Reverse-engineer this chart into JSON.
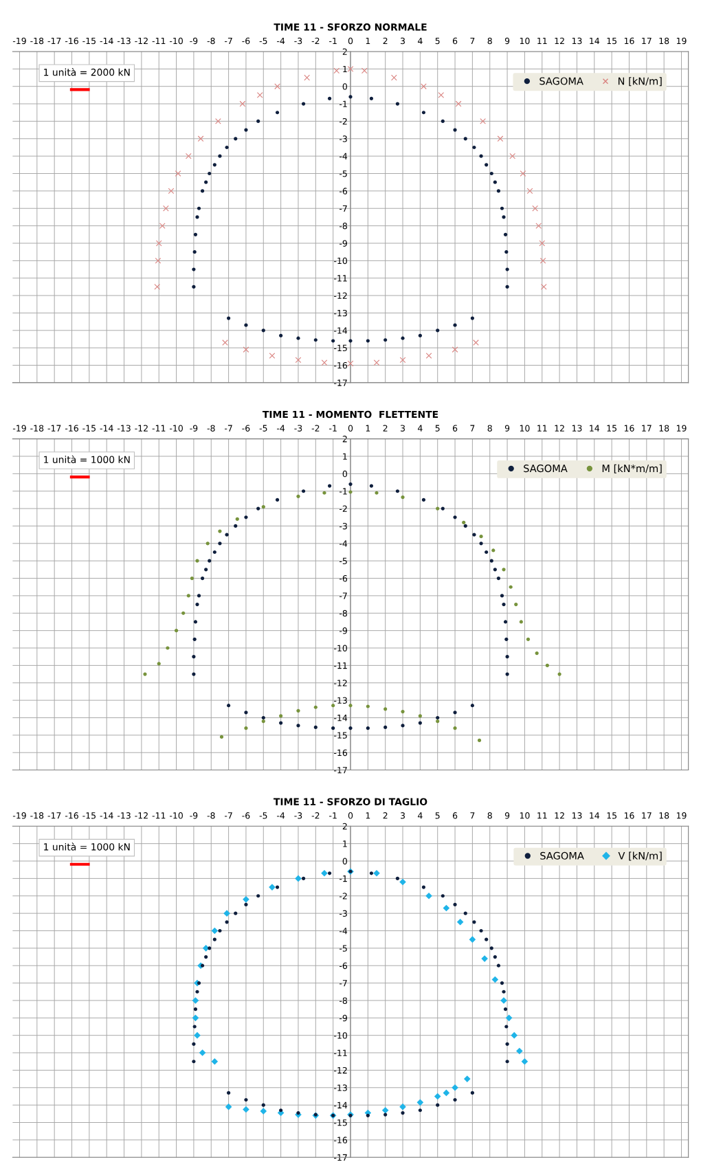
{
  "chart_data": [
    {
      "type": "scatter",
      "title": "TIME 11 - SFORZO NORMALE",
      "annotations": [
        "1 unità = 2000 kN"
      ],
      "legend": "top right",
      "grid": true,
      "xlim": [
        -19.4,
        19.4
      ],
      "ylim": [
        -17,
        2
      ],
      "xticks": [
        -19,
        -18,
        -17,
        -16,
        -15,
        -14,
        -13,
        -12,
        -11,
        -10,
        -9,
        -8,
        -7,
        -6,
        -5,
        -4,
        -3,
        -2,
        -1,
        0,
        1,
        2,
        3,
        4,
        5,
        6,
        7,
        8,
        9,
        10,
        11,
        12,
        13,
        14,
        15,
        16,
        17,
        18,
        19
      ],
      "yticks": [
        2,
        1,
        0,
        -1,
        -2,
        -3,
        -4,
        -5,
        -6,
        -7,
        -8,
        -9,
        -10,
        -11,
        -12,
        -13,
        -14,
        -15,
        -16,
        -17
      ],
      "series": [
        {
          "name": "SAGOMA",
          "color": "#0f1f3d",
          "marker": "circle",
          "x": [
            -9,
            -9,
            -8.95,
            -8.9,
            -8.8,
            -8.7,
            -8.5,
            -8.3,
            -8.1,
            -7.8,
            -7.5,
            -7.1,
            -6.6,
            -6,
            -5.3,
            -4.2,
            -2.7,
            -1.2,
            0,
            1.2,
            2.7,
            4.2,
            5.3,
            6,
            6.6,
            7.1,
            7.5,
            7.8,
            8.1,
            8.3,
            8.5,
            8.7,
            8.8,
            8.9,
            8.95,
            9,
            9,
            null,
            -7,
            -6,
            -5,
            -4,
            -3,
            -2,
            -1,
            0,
            1,
            2,
            3,
            4,
            5,
            6,
            7
          ],
          "values": [
            -11.5,
            -10.5,
            -9.5,
            -8.5,
            -7.5,
            -7,
            -6,
            -5.5,
            -5,
            -4.5,
            -4,
            -3.5,
            -3,
            -2.5,
            -2,
            -1.5,
            -1,
            -0.7,
            -0.6,
            -0.7,
            -1,
            -1.5,
            -2,
            -2.5,
            -3,
            -3.5,
            -4,
            -4.5,
            -5,
            -5.5,
            -6,
            -7,
            -7.5,
            -8.5,
            -9.5,
            -10.5,
            -11.5,
            null,
            -13.3,
            -13.7,
            -14,
            -14.3,
            -14.45,
            -14.55,
            -14.6,
            -14.6,
            -14.6,
            -14.55,
            -14.45,
            -14.3,
            -14,
            -13.7,
            -13.3
          ]
        },
        {
          "name": "N [kN/m]",
          "color": "#d9827f",
          "marker": "cross",
          "x": [
            -11.1,
            -11.05,
            -11,
            -10.8,
            -10.6,
            -10.3,
            -9.9,
            -9.3,
            -8.6,
            -7.6,
            -6.2,
            -5.2,
            -4.2,
            -2.5,
            -0.8,
            0,
            0.8,
            2.5,
            4.2,
            5.2,
            6.2,
            7.6,
            8.6,
            9.3,
            9.9,
            10.3,
            10.6,
            10.8,
            11,
            11.05,
            11.1,
            null,
            -7.2,
            -6,
            -4.5,
            -3,
            -1.5,
            0,
            1.5,
            3,
            4.5,
            6,
            7.2
          ],
          "values": [
            -11.5,
            -10,
            -9,
            -8,
            -7,
            -6,
            -5,
            -4,
            -3,
            -2,
            -1,
            -0.5,
            0,
            0.5,
            0.9,
            1,
            0.9,
            0.5,
            0,
            -0.5,
            -1,
            -2,
            -3,
            -4,
            -5,
            -6,
            -7,
            -8,
            -9,
            -10,
            -11.5,
            null,
            -14.7,
            -15.1,
            -15.45,
            -15.7,
            -15.85,
            -15.9,
            -15.85,
            -15.7,
            -15.45,
            -15.1,
            -14.7
          ]
        }
      ]
    },
    {
      "type": "scatter",
      "title": "TIME 11 - MOMENTO  FLETTENTE",
      "annotations": [
        "1 unità = 1000 kN"
      ],
      "legend": "top right",
      "grid": true,
      "xlim": [
        -19.4,
        19.4
      ],
      "ylim": [
        -17,
        2
      ],
      "xticks": [
        -19,
        -18,
        -17,
        -16,
        -15,
        -14,
        -13,
        -12,
        -11,
        -10,
        -9,
        -8,
        -7,
        -6,
        -5,
        -4,
        -3,
        -2,
        -1,
        0,
        1,
        2,
        3,
        4,
        5,
        6,
        7,
        8,
        9,
        10,
        11,
        12,
        13,
        14,
        15,
        16,
        17,
        18,
        19
      ],
      "yticks": [
        2,
        1,
        0,
        -1,
        -2,
        -3,
        -4,
        -5,
        -6,
        -7,
        -8,
        -9,
        -10,
        -11,
        -12,
        -13,
        -14,
        -15,
        -16,
        -17
      ],
      "series": [
        {
          "name": "SAGOMA",
          "color": "#0f1f3d",
          "marker": "circle",
          "x": [
            -9,
            -9,
            -8.95,
            -8.9,
            -8.8,
            -8.7,
            -8.5,
            -8.3,
            -8.1,
            -7.8,
            -7.5,
            -7.1,
            -6.6,
            -6,
            -5.3,
            -4.2,
            -2.7,
            -1.2,
            0,
            1.2,
            2.7,
            4.2,
            5.3,
            6,
            6.6,
            7.1,
            7.5,
            7.8,
            8.1,
            8.3,
            8.5,
            8.7,
            8.8,
            8.9,
            8.95,
            9,
            9,
            null,
            -7,
            -6,
            -5,
            -4,
            -3,
            -2,
            -1,
            0,
            1,
            2,
            3,
            4,
            5,
            6,
            7
          ],
          "values": [
            -11.5,
            -10.5,
            -9.5,
            -8.5,
            -7.5,
            -7,
            -6,
            -5.5,
            -5,
            -4.5,
            -4,
            -3.5,
            -3,
            -2.5,
            -2,
            -1.5,
            -1,
            -0.7,
            -0.6,
            -0.7,
            -1,
            -1.5,
            -2,
            -2.5,
            -3,
            -3.5,
            -4,
            -4.5,
            -5,
            -5.5,
            -6,
            -7,
            -7.5,
            -8.5,
            -9.5,
            -10.5,
            -11.5,
            null,
            -13.3,
            -13.7,
            -14,
            -14.3,
            -14.45,
            -14.55,
            -14.6,
            -14.6,
            -14.6,
            -14.55,
            -14.45,
            -14.3,
            -14,
            -13.7,
            -13.3
          ]
        },
        {
          "name": "M [kN*m/m]",
          "color": "#77933c",
          "marker": "circle",
          "x": [
            -11.8,
            -11,
            -10.5,
            -10,
            -9.6,
            -9.3,
            -9.1,
            -8.8,
            -8.2,
            -7.5,
            -6.5,
            -5,
            -3,
            -1.5,
            0,
            1.5,
            3,
            5,
            6.5,
            7.5,
            8.2,
            8.8,
            9.2,
            9.5,
            9.8,
            10.2,
            10.7,
            11.3,
            12,
            null,
            -7.4,
            -6,
            -5,
            -4,
            -3,
            -2,
            -1,
            0,
            1,
            2,
            3,
            4,
            5,
            6,
            7.4
          ],
          "values": [
            -11.5,
            -10.9,
            -10,
            -9,
            -8,
            -7,
            -6,
            -5,
            -4,
            -3.3,
            -2.6,
            -1.9,
            -1.3,
            -1.1,
            -1.05,
            -1.1,
            -1.35,
            -2,
            -2.8,
            -3.6,
            -4.4,
            -5.5,
            -6.5,
            -7.5,
            -8.5,
            -9.5,
            -10.3,
            -11,
            -11.5,
            null,
            -15.1,
            -14.6,
            -14.2,
            -13.9,
            -13.6,
            -13.4,
            -13.3,
            -13.3,
            -13.35,
            -13.5,
            -13.65,
            -13.9,
            -14.2,
            -14.6,
            -15.3
          ]
        }
      ]
    },
    {
      "type": "scatter",
      "title": "TIME 11 - SFORZO DI TAGLIO",
      "annotations": [
        "1 unità = 1000 kN"
      ],
      "legend": "top right",
      "grid": true,
      "xlim": [
        -19.4,
        19.4
      ],
      "ylim": [
        -17,
        2
      ],
      "xticks": [
        -19,
        -18,
        -17,
        -16,
        -15,
        -14,
        -13,
        -12,
        -11,
        -10,
        -9,
        -8,
        -7,
        -6,
        -5,
        -4,
        -3,
        -2,
        -1,
        0,
        1,
        2,
        3,
        4,
        5,
        6,
        7,
        8,
        9,
        10,
        11,
        12,
        13,
        14,
        15,
        16,
        17,
        18,
        19
      ],
      "yticks": [
        2,
        1,
        0,
        -1,
        -2,
        -3,
        -4,
        -5,
        -6,
        -7,
        -8,
        -9,
        -10,
        -11,
        -12,
        -13,
        -14,
        -15,
        -16,
        -17
      ],
      "series": [
        {
          "name": "SAGOMA",
          "color": "#0f1f3d",
          "marker": "circle",
          "x": [
            -9,
            -9,
            -8.95,
            -8.9,
            -8.8,
            -8.7,
            -8.5,
            -8.3,
            -8.1,
            -7.8,
            -7.5,
            -7.1,
            -6.6,
            -6,
            -5.3,
            -4.2,
            -2.7,
            -1.2,
            0,
            1.2,
            2.7,
            4.2,
            5.3,
            6,
            6.6,
            7.1,
            7.5,
            7.8,
            8.1,
            8.3,
            8.5,
            8.7,
            8.8,
            8.9,
            8.95,
            9,
            9,
            null,
            -7,
            -6,
            -5,
            -4,
            -3,
            -2,
            -1,
            0,
            1,
            2,
            3,
            4,
            5,
            6,
            7
          ],
          "values": [
            -11.5,
            -10.5,
            -9.5,
            -8.5,
            -7.5,
            -7,
            -6,
            -5.5,
            -5,
            -4.5,
            -4,
            -3.5,
            -3,
            -2.5,
            -2,
            -1.5,
            -1,
            -0.7,
            -0.6,
            -0.7,
            -1,
            -1.5,
            -2,
            -2.5,
            -3,
            -3.5,
            -4,
            -4.5,
            -5,
            -5.5,
            -6,
            -7,
            -7.5,
            -8.5,
            -9.5,
            -10.5,
            -11.5,
            null,
            -13.3,
            -13.7,
            -14,
            -14.3,
            -14.45,
            -14.55,
            -14.6,
            -14.6,
            -14.6,
            -14.55,
            -14.45,
            -14.3,
            -14,
            -13.7,
            -13.3
          ]
        },
        {
          "name": "V [kN/m]",
          "color": "#1fb4e8",
          "marker": "diamond",
          "x": [
            -7.8,
            -8.5,
            -8.8,
            -8.9,
            -8.9,
            -8.8,
            -8.6,
            -8.3,
            -7.8,
            -7.1,
            -6,
            -4.5,
            -3,
            -1.5,
            0,
            1.5,
            3,
            4.5,
            5.5,
            6.3,
            7,
            7.7,
            8.3,
            8.8,
            9.1,
            9.4,
            9.7,
            10,
            null,
            -7,
            -6,
            -5,
            -4,
            -3,
            -2,
            -1,
            0,
            1,
            2,
            3,
            4,
            5,
            5.5,
            6,
            6.7
          ],
          "values": [
            -11.5,
            -11,
            -10,
            -9,
            -8,
            -7,
            -6,
            -5,
            -4,
            -3,
            -2.2,
            -1.5,
            -1,
            -0.7,
            -0.6,
            -0.7,
            -1.2,
            -2,
            -2.7,
            -3.5,
            -4.5,
            -5.6,
            -6.8,
            -8,
            -9,
            -10,
            -10.9,
            -11.5,
            null,
            -14.1,
            -14.25,
            -14.35,
            -14.45,
            -14.55,
            -14.6,
            -14.6,
            -14.55,
            -14.45,
            -14.3,
            -14.1,
            -13.85,
            -13.5,
            -13.3,
            -13,
            -12.5
          ]
        }
      ]
    }
  ]
}
